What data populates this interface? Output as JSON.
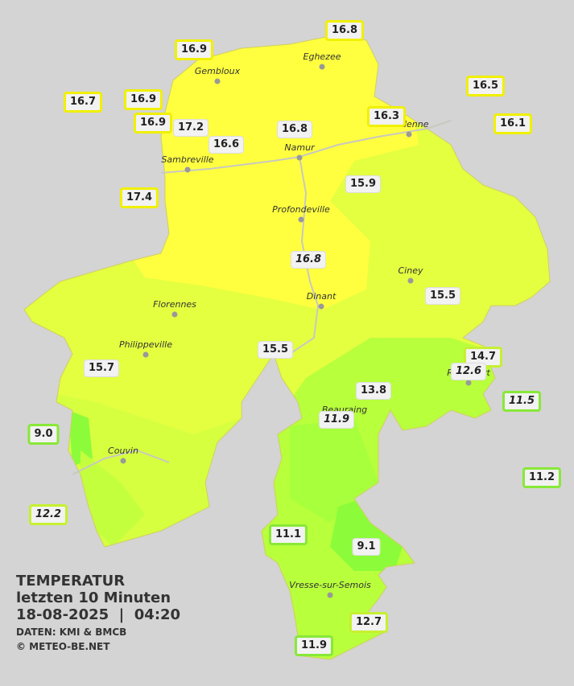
{
  "stations": [
    {
      "label": "16.8"
    },
    {
      "label": "16.9"
    },
    {
      "label": "16.5"
    },
    {
      "label": "16.7"
    },
    {
      "label": "16.9"
    },
    {
      "label": "16.9"
    },
    {
      "label": "17.2"
    },
    {
      "label": "16.3"
    },
    {
      "label": "16.1"
    },
    {
      "label": "16.8"
    },
    {
      "label": "16.6"
    },
    {
      "label": "17.4"
    },
    {
      "label": "15.9"
    },
    {
      "label": "16.8",
      "italic": true
    },
    {
      "label": "15.5"
    },
    {
      "label": "15.5"
    },
    {
      "label": "15.7"
    },
    {
      "label": "14.7"
    },
    {
      "label": "12.6",
      "italic": true
    },
    {
      "label": "13.8"
    },
    {
      "label": "11.5",
      "italic": true
    },
    {
      "label": "11.9",
      "italic": true
    },
    {
      "label": "9.0"
    },
    {
      "label": "11.2"
    },
    {
      "label": "12.2",
      "italic": true
    },
    {
      "label": "11.1"
    },
    {
      "label": "9.1"
    },
    {
      "label": "12.7"
    },
    {
      "label": "11.9"
    }
  ],
  "cities": [
    "Eghezee",
    "Gembloux",
    "Andenne",
    "Namur",
    "Sambreville",
    "Profondeville",
    "Ciney",
    "Dinant",
    "Florennes",
    "Philippeville",
    "Rochefort",
    "Beauraing",
    "Couvin",
    "Vresse-sur-Semois"
  ],
  "legend": {
    "title": "TEMPERATUR",
    "subtitle": "letzten 10 Minuten",
    "datetime": "18-08-2025  |  04:20",
    "source": "DATEN: KMI & BMCB",
    "copyright": "© METEO-BE.NET"
  }
}
